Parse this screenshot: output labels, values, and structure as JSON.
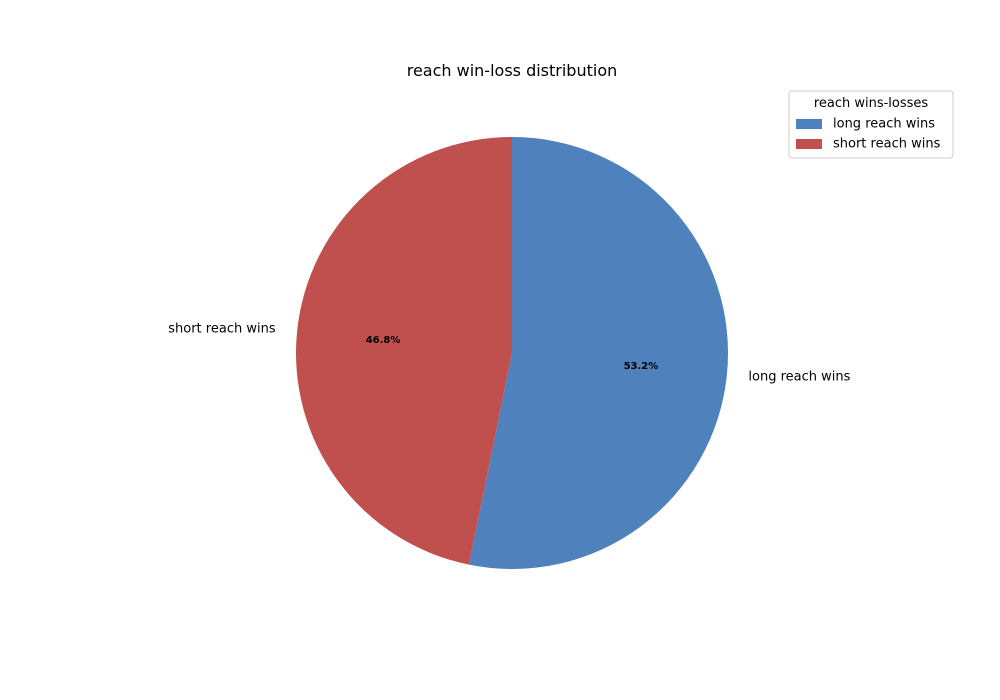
{
  "chart_data": {
    "type": "pie",
    "title": "reach win-loss distribution",
    "categories": [
      "long reach wins",
      "short reach wins"
    ],
    "values": [
      53.2,
      46.8
    ],
    "value_labels": [
      "53.2%",
      "46.8%"
    ],
    "colors": [
      "#4f81bd",
      "#c0504d"
    ],
    "start_angle_deg": 90,
    "direction": "clockwise",
    "legend": {
      "title": "reach wins-losses",
      "placement": "top-right",
      "entries": [
        "long reach wins",
        "short reach wins"
      ]
    }
  }
}
